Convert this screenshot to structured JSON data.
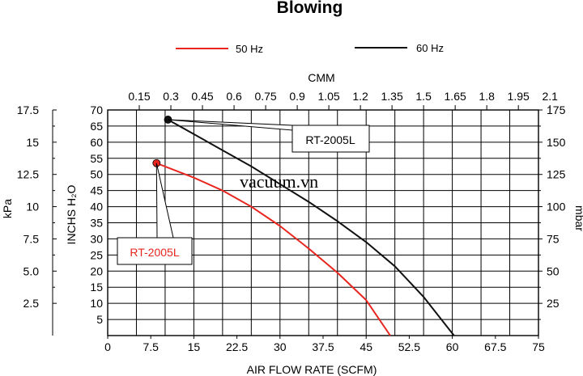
{
  "chart_data": {
    "type": "line",
    "title": "Blowing",
    "xlabel": "AIR FLOW RATE (SCFM)",
    "x_top_label": "CMM",
    "ylabel": "INCHS H₂O",
    "y_left_outer_label": "kPa",
    "y_right_label": "mbar",
    "xlim": [
      0,
      75
    ],
    "ylim": [
      0,
      70
    ],
    "x_ticks": [
      "0",
      "7.5",
      "15",
      "22.5",
      "30",
      "37.5",
      "45",
      "52.5",
      "60",
      "67.5",
      "75"
    ],
    "x_top_ticks": [
      "0.15",
      "0.3",
      "0.45",
      "0.6",
      "0.75",
      "0.9",
      "1.05",
      "1.2",
      "1.35",
      "1.5",
      "1.65",
      "1.8",
      "1.95",
      "2.1"
    ],
    "y_ticks": [
      "5",
      "10",
      "15",
      "20",
      "25",
      "30",
      "35",
      "40",
      "45",
      "50",
      "55",
      "60",
      "65",
      "70"
    ],
    "kpa_ticks": [
      "2.5",
      "5.0",
      "7.5",
      "10",
      "12.5",
      "15",
      "17.5"
    ],
    "mbar_ticks": [
      "25",
      "50",
      "75",
      "100",
      "125",
      "150",
      "175"
    ],
    "grid": true,
    "legend_position": "top",
    "series": [
      {
        "name": "50 Hz",
        "color": "#e8261f",
        "marker_label": "RT-2005L",
        "x": [
          8.5,
          15,
          20,
          25,
          30,
          35,
          40,
          45,
          49.2
        ],
        "y": [
          53.5,
          49,
          45,
          40,
          34,
          27,
          19.5,
          11,
          0
        ]
      },
      {
        "name": "60 Hz",
        "color": "#111111",
        "marker_label": "RT-2005L",
        "x": [
          10.5,
          15,
          20,
          25,
          30,
          35,
          40,
          45,
          50,
          55,
          60.3
        ],
        "y": [
          67,
          62.5,
          57.5,
          52.5,
          47,
          41.5,
          35.5,
          29,
          21.5,
          12,
          0
        ]
      }
    ]
  },
  "watermark": "vacuum.vn"
}
